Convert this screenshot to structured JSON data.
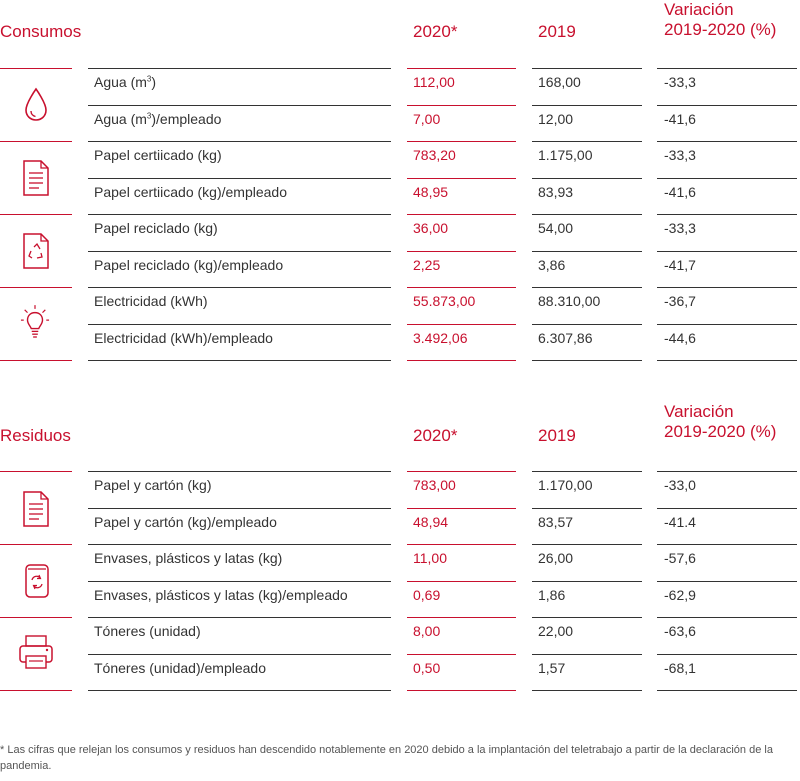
{
  "consumos": {
    "title": "Consumos",
    "col_2020": "2020*",
    "col_2019": "2019",
    "col_var_line1": "Variación",
    "col_var_line2": "2019-2020 (%)",
    "icons": [
      "water-drop-icon",
      "paper-document-icon",
      "recycled-paper-icon",
      "light-bulb-icon"
    ],
    "rows": [
      {
        "label_pre": "Agua (m",
        "label_sup": "3",
        "label_post": ")",
        "v2020": "112,00",
        "v2019": "168,00",
        "var": "-33,3"
      },
      {
        "label_pre": "Agua (m",
        "label_sup": "3",
        "label_post": ")/empleado",
        "v2020": "7,00",
        "v2019": "12,00",
        "var": "-41,6"
      },
      {
        "label": "Papel certiicado (kg)",
        "v2020": "783,20",
        "v2019": "1.175,00",
        "var": "-33,3"
      },
      {
        "label": "Papel certiicado (kg)/empleado",
        "v2020": "48,95",
        "v2019": "83,93",
        "var": "-41,6"
      },
      {
        "label": "Papel reciclado (kg)",
        "v2020": "36,00",
        "v2019": "54,00",
        "var": "-33,3"
      },
      {
        "label": "Papel reciclado (kg)/empleado",
        "v2020": "2,25",
        "v2019": "3,86",
        "var": "-41,7"
      },
      {
        "label": "Electricidad (kWh)",
        "v2020": "55.873,00",
        "v2019": "88.310,00",
        "var": "-36,7"
      },
      {
        "label": "Electricidad (kWh)/empleado",
        "v2020": "3.492,06",
        "v2019": "6.307,86",
        "var": "-44,6"
      }
    ]
  },
  "residuos": {
    "title": "Residuos",
    "col_2020": "2020*",
    "col_2019": "2019",
    "col_var_line1": "Variación",
    "col_var_line2": "2019-2020 (%)",
    "icons": [
      "paper-document-icon",
      "recycle-can-icon",
      "printer-icon"
    ],
    "rows": [
      {
        "label": "Papel y cartón (kg)",
        "v2020": "783,00",
        "v2019": "1.170,00",
        "var": "-33,0"
      },
      {
        "label": "Papel y cartón (kg)/empleado",
        "v2020": "48,94",
        "v2019": "83,57",
        "var": "-41.4"
      },
      {
        "label": "Envases, plásticos y latas (kg)",
        "v2020": "11,00",
        "v2019": "26,00",
        "var": "-57,6"
      },
      {
        "label": "Envases, plásticos y latas (kg)/empleado",
        "v2020": "0,69",
        "v2019": "1,86",
        "var": "-62,9"
      },
      {
        "label": "Tóneres (unidad)",
        "v2020": "8,00",
        "v2019": "22,00",
        "var": "-63,6"
      },
      {
        "label": "Tóneres (unidad)/empleado",
        "v2020": "0,50",
        "v2019": "1,57",
        "var": "-68,1"
      }
    ]
  },
  "footnote": "* Las cifras que relejan los consumos y residuos han descendido notablemente en 2020 debido a la implantación del teletrabajo a partir de la declaración de la pandemia.",
  "colors": {
    "accent": "#c8102e",
    "text": "#333333"
  }
}
